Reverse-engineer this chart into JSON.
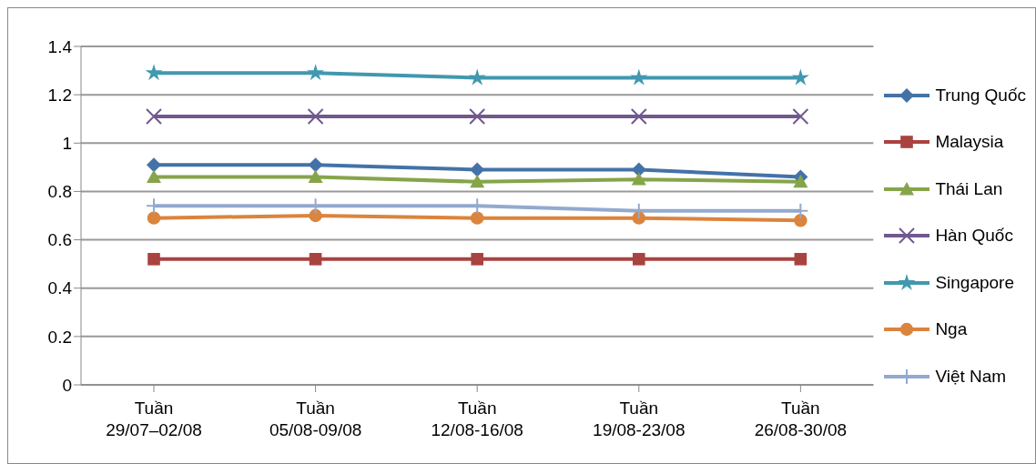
{
  "chart_data": {
    "type": "line",
    "categories": [
      "Tuần\n29/07–02/08",
      "Tuần\n05/08-09/08",
      "Tuần\n12/08-16/08",
      "Tuần\n19/08-23/08",
      "Tuần\n26/08-30/08"
    ],
    "series": [
      {
        "name": "Trung Quốc",
        "color": "#4472a8",
        "marker": "diamond",
        "values": [
          0.91,
          0.91,
          0.89,
          0.89,
          0.86
        ]
      },
      {
        "name": "Malaysia",
        "color": "#a84340",
        "marker": "square",
        "values": [
          0.52,
          0.52,
          0.52,
          0.52,
          0.52
        ]
      },
      {
        "name": "Thái Lan",
        "color": "#86a44a",
        "marker": "triangle",
        "values": [
          0.86,
          0.86,
          0.84,
          0.85,
          0.84
        ]
      },
      {
        "name": "Hàn Quốc",
        "color": "#71588f",
        "marker": "cross",
        "values": [
          1.11,
          1.11,
          1.11,
          1.11,
          1.11
        ]
      },
      {
        "name": "Singapore",
        "color": "#4198af",
        "marker": "star",
        "values": [
          1.29,
          1.29,
          1.27,
          1.27,
          1.27
        ]
      },
      {
        "name": "Nga",
        "color": "#db843d",
        "marker": "circle",
        "values": [
          0.69,
          0.7,
          0.69,
          0.69,
          0.68
        ]
      },
      {
        "name": "Việt Nam",
        "color": "#93a9cf",
        "marker": "plus",
        "values": [
          0.74,
          0.74,
          0.74,
          0.72,
          0.72
        ]
      }
    ],
    "ylim": [
      0,
      1.4
    ],
    "yticks": [
      0,
      0.2,
      0.4,
      0.6,
      0.8,
      1,
      1.2,
      1.4
    ],
    "grid": "y",
    "legend": "right"
  }
}
